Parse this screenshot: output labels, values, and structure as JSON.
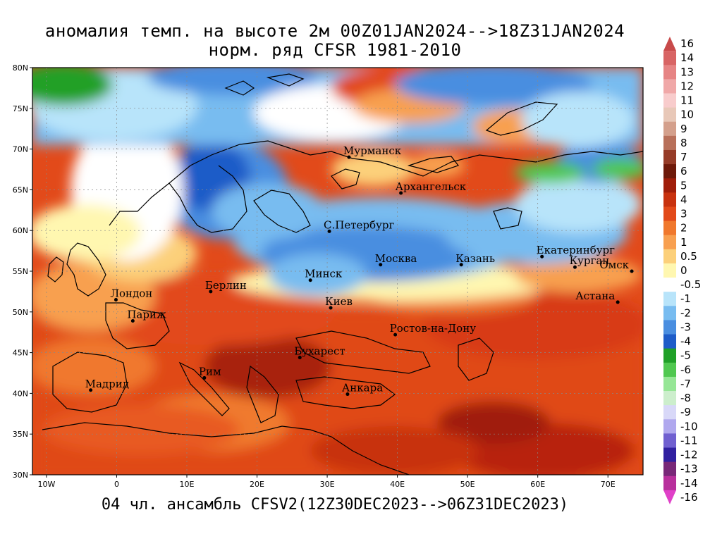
{
  "header": {
    "title_line1": "аномалия темп. на высоте 2м 00Z01JAN2024-->18Z31JAN2024",
    "title_line2": "норм. ряд CFSR 1981-2010"
  },
  "footer": {
    "subtitle": "04 чл. ансамбль CFSV2(12Z30DEC2023-->06Z31DEC2023)"
  },
  "map": {
    "lat_range": [
      30,
      80
    ],
    "lon_range": [
      -12,
      75
    ],
    "lat_ticks": [
      {
        "value": 80,
        "label": "80N"
      },
      {
        "value": 75,
        "label": "75N"
      },
      {
        "value": 70,
        "label": "70N"
      },
      {
        "value": 65,
        "label": "65N"
      },
      {
        "value": 60,
        "label": "60N"
      },
      {
        "value": 55,
        "label": "55N"
      },
      {
        "value": 50,
        "label": "50N"
      },
      {
        "value": 45,
        "label": "45N"
      },
      {
        "value": 40,
        "label": "40N"
      },
      {
        "value": 35,
        "label": "35N"
      },
      {
        "value": 30,
        "label": "30N"
      }
    ],
    "lon_ticks": [
      {
        "value": -10,
        "label": "10W"
      },
      {
        "value": 0,
        "label": "0"
      },
      {
        "value": 10,
        "label": "10E"
      },
      {
        "value": 20,
        "label": "20E"
      },
      {
        "value": 30,
        "label": "30E"
      },
      {
        "value": 40,
        "label": "40E"
      },
      {
        "value": 50,
        "label": "50E"
      },
      {
        "value": 60,
        "label": "60E"
      },
      {
        "value": 70,
        "label": "70E"
      }
    ],
    "cities": [
      {
        "name": "Мурманск",
        "lat": 69.0,
        "lon": 33.1
      },
      {
        "name": "Архангельск",
        "lat": 64.6,
        "lon": 40.5
      },
      {
        "name": "С.Петербург",
        "lat": 59.9,
        "lon": 30.3
      },
      {
        "name": "Москва",
        "lat": 55.8,
        "lon": 37.6
      },
      {
        "name": "Казань",
        "lat": 55.8,
        "lon": 49.1
      },
      {
        "name": "Екатеринбург",
        "lat": 56.8,
        "lon": 60.6
      },
      {
        "name": "Курган",
        "lat": 55.5,
        "lon": 65.3
      },
      {
        "name": "Омск",
        "lat": 55.0,
        "lon": 73.4
      },
      {
        "name": "Астана",
        "lat": 51.2,
        "lon": 71.4
      },
      {
        "name": "Минск",
        "lat": 53.9,
        "lon": 27.6
      },
      {
        "name": "Берлин",
        "lat": 52.5,
        "lon": 13.4
      },
      {
        "name": "Лондон",
        "lat": 51.5,
        "lon": -0.1
      },
      {
        "name": "Париж",
        "lat": 48.9,
        "lon": 2.3
      },
      {
        "name": "Киев",
        "lat": 50.5,
        "lon": 30.5
      },
      {
        "name": "Ростов-на-Дону",
        "lat": 47.2,
        "lon": 39.7
      },
      {
        "name": "Бухарест",
        "lat": 44.4,
        "lon": 26.1
      },
      {
        "name": "Рим",
        "lat": 41.9,
        "lon": 12.5
      },
      {
        "name": "Мадрид",
        "lat": 40.4,
        "lon": -3.7
      },
      {
        "name": "Анкара",
        "lat": 39.9,
        "lon": 32.9
      }
    ]
  },
  "colorbar": {
    "levels": [
      {
        "label": "16",
        "color": "#c84a4a"
      },
      {
        "label": "14",
        "color": "#d86464"
      },
      {
        "label": "13",
        "color": "#e68484"
      },
      {
        "label": "12",
        "color": "#f0a8a8"
      },
      {
        "label": "11",
        "color": "#f8cccc"
      },
      {
        "label": "10",
        "color": "#e8c8b8"
      },
      {
        "label": "9",
        "color": "#d4a08c"
      },
      {
        "label": "8",
        "color": "#b8705a"
      },
      {
        "label": "7",
        "color": "#963c28"
      },
      {
        "label": "6",
        "color": "#6e1a0a"
      },
      {
        "label": "5",
        "color": "#a01e0a"
      },
      {
        "label": "4",
        "color": "#c8320f"
      },
      {
        "label": "3",
        "color": "#e24a1a"
      },
      {
        "label": "2",
        "color": "#f0782d"
      },
      {
        "label": "1",
        "color": "#f8a050"
      },
      {
        "label": "0.5",
        "color": "#fcd07a"
      },
      {
        "label": "0",
        "color": "#fff7b0"
      },
      {
        "label": "-0.5",
        "color": "#ffffff"
      },
      {
        "label": "-1",
        "color": "#b8e4fa"
      },
      {
        "label": "-2",
        "color": "#78bcf0"
      },
      {
        "label": "-3",
        "color": "#4a8ee0"
      },
      {
        "label": "-4",
        "color": "#1e5cc8"
      },
      {
        "label": "-5",
        "color": "#20a028"
      },
      {
        "label": "-6",
        "color": "#50c850"
      },
      {
        "label": "-7",
        "color": "#96e696"
      },
      {
        "label": "-8",
        "color": "#cceecc"
      },
      {
        "label": "-9",
        "color": "#d8d8f8"
      },
      {
        "label": "-10",
        "color": "#b0a8ee"
      },
      {
        "label": "-11",
        "color": "#7060d0"
      },
      {
        "label": "-12",
        "color": "#3020a0"
      },
      {
        "label": "-13",
        "color": "#782878"
      },
      {
        "label": "-14",
        "color": "#b8309c"
      },
      {
        "label": "-16",
        "color": "#e040c8"
      }
    ]
  }
}
